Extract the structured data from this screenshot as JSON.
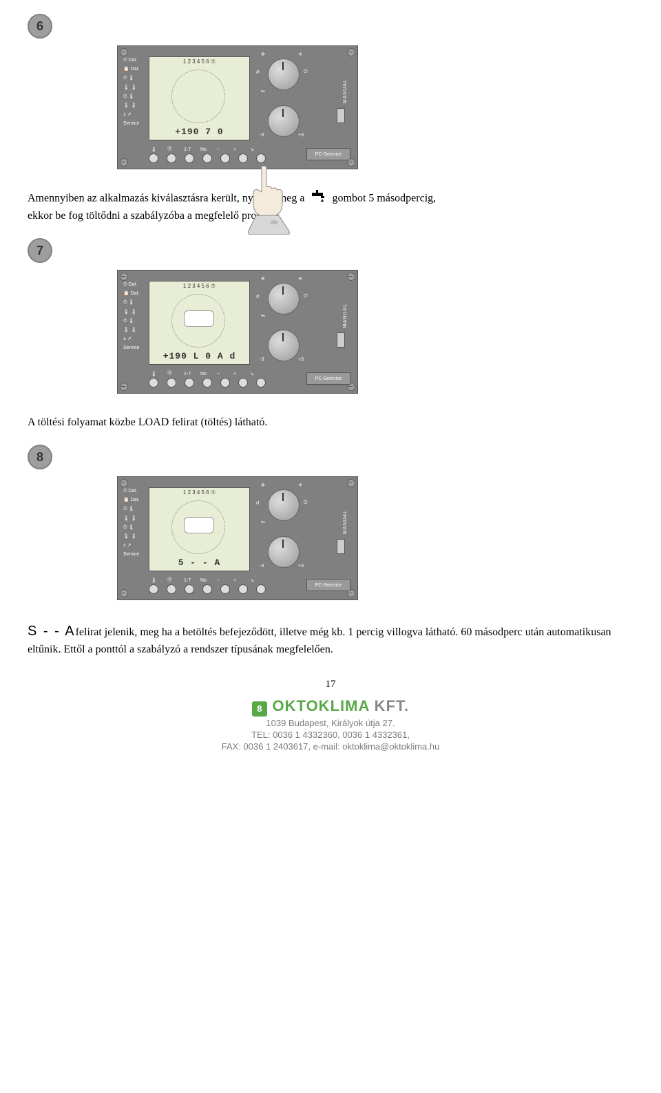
{
  "steps": {
    "s6": {
      "num": "6",
      "display": "+190   7 0",
      "show_slot": false,
      "show_hand": true
    },
    "s7": {
      "num": "7",
      "display": "+190 L 0 A d",
      "show_slot": true,
      "show_hand": false
    },
    "s8": {
      "num": "8",
      "display": "    5 - - A",
      "show_slot": true,
      "show_hand": false
    }
  },
  "panel": {
    "side_labels": [
      "⏱ Dat.",
      "📋 Dat.",
      "⏱ 🌡",
      "🌡 🌡",
      "⏱ 🌡",
      "🌡 🌡",
      "± ↗",
      "Service"
    ],
    "lcd_top": "1 2 3 4 5 6 ⑦",
    "button_labels": [
      "🌡",
      "Ⓚ",
      "1-7",
      "No",
      "−",
      "+",
      "↘"
    ],
    "pcservice": "PC-Sercvice",
    "manual": "MANUAL",
    "upper_dial_marks": {
      "tl": "❄",
      "tr": "☀",
      "l": "↺",
      "r": "⏻",
      "b": "↬"
    },
    "lower_dial_marks": {
      "l": "-3",
      "r": "+3"
    },
    "colors": {
      "panel_bg": "#808080",
      "lcd_bg": "#e8eed5",
      "text_white": "#ffffff",
      "brand_green": "#58a848"
    }
  },
  "text": {
    "para1_a": "Amennyiben az alkalmazás kiválasztásra került, nyomja meg a",
    "para1_b": "gombot 5 másodpercig,",
    "para1_c": "ekkor be fog töltődni a szabályzóba a megfelelő program.",
    "para2": "A töltési folyamat közbe LOAD felirat (töltés) látható.",
    "sa_label": "S - - A",
    "para3": "felirat jelenik, meg ha a betöltés befejeződött, illetve még kb. 1 percig villogva látható. 60 másodperc után automatikusan eltűnik. Ettől a ponttól a szabályzó a rendszer típusának megfelelően.",
    "pagenum": "17"
  },
  "footer": {
    "brand": "OKTOKLIMA",
    "suffix": " KFT.",
    "addr": "1039 Budapest, Királyok útja 27.",
    "tel": "TEL: 0036 1 4332360, 0036 1 4332361,",
    "fax": "FAX: 0036 1 2403617, e-mail: oktoklima@oktoklima.hu"
  }
}
